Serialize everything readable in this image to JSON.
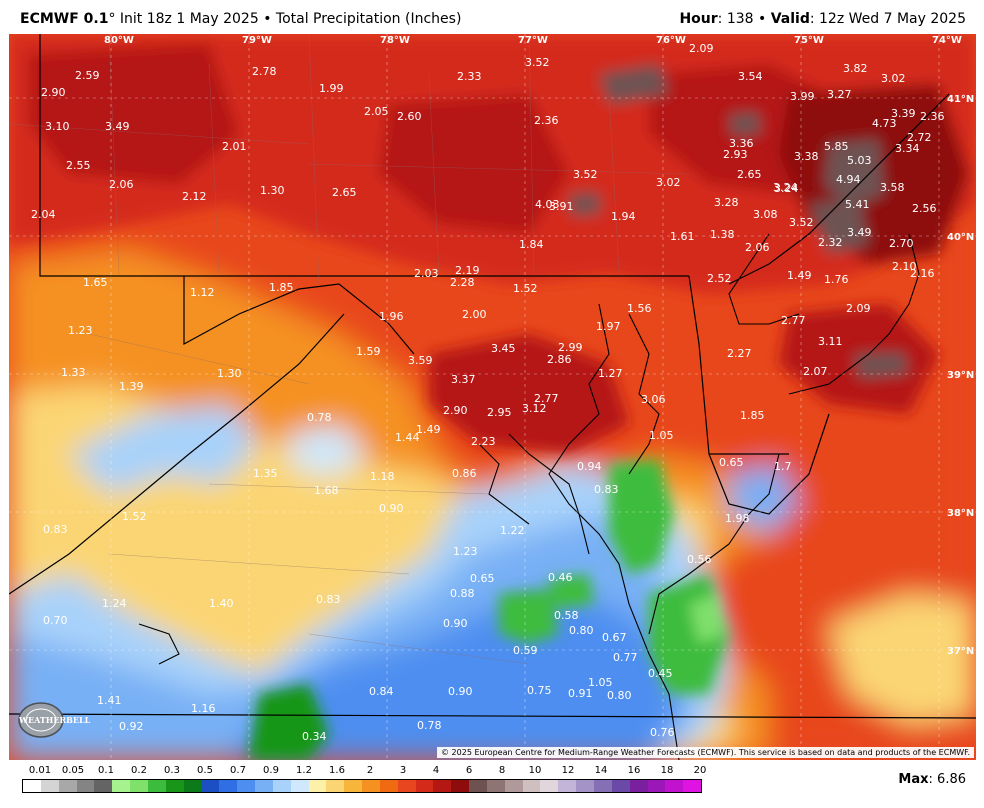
{
  "header": {
    "model": "ECMWF 0.1",
    "degree": "°",
    "init": "Init 18z 1 May 2025",
    "bullet": "•",
    "product": "Total Precipitation (Inches)",
    "hour_label": "Hour",
    "hour_value": ": 138",
    "valid_label": "Valid",
    "valid_value": ": 12z Wed 7 May 2025"
  },
  "map": {
    "longitude_labels": [
      "80°W",
      "79°W",
      "78°W",
      "77°W",
      "76°W",
      "75°W",
      "74°W"
    ],
    "latitude_labels": [
      "41°N",
      "40°N",
      "39°N",
      "38°N",
      "37°N"
    ],
    "values": [
      "2.59",
      "2.90",
      "3.10",
      "3.49",
      "2.78",
      "1.99",
      "2.05",
      "2.60",
      "2.33",
      "3.52",
      "2.09",
      "3.54",
      "3.82",
      "3.02",
      "2.01",
      "2.55",
      "2.06",
      "2.12",
      "1.30",
      "2.65",
      "2.36",
      "3.52",
      "3.02",
      "3.36",
      "2.93",
      "3.38",
      "3.99",
      "3.27",
      "4.73",
      "3.39",
      "2.36",
      "5.85",
      "3.34",
      "2.72",
      "3.24",
      "5.03",
      "4.94",
      "3.58",
      "2.04",
      "4.03",
      "3.91",
      "1.94",
      "1.61",
      "3.28",
      "2.65",
      "3.24",
      "5.41",
      "2.56",
      "1.84",
      "1.38",
      "3.08",
      "3.52",
      "3.49",
      "2.32",
      "2.70",
      "2.06",
      "1.65",
      "1.12",
      "1.85",
      "2.03",
      "2.19",
      "2.28",
      "1.52",
      "2.52",
      "1.49",
      "1.76",
      "2.10",
      "2.16",
      "1.23",
      "1.96",
      "2.00",
      "1.56",
      "2.77",
      "2.09",
      "1.59",
      "3.45",
      "2.99",
      "1.97",
      "2.27",
      "3.11",
      "1.33",
      "1.39",
      "1.30",
      "3.59",
      "3.37",
      "2.86",
      "1.27",
      "2.07",
      "0.78",
      "2.90",
      "2.95",
      "3.12",
      "2.77",
      "3.06",
      "1.85",
      "1.44",
      "1.49",
      "2.23",
      "1.05",
      "0.94",
      "0.65",
      "1.35",
      "1.68",
      "1.18",
      "0.86",
      "0.83",
      "1.7",
      "1.52",
      "0.90",
      "1.22",
      "1.98",
      "0.83",
      "1.23",
      "0.46",
      "0.56",
      "0.65",
      "0.88",
      "1.24",
      "1.40",
      "0.83",
      "0.58",
      "0.70",
      "0.90",
      "0.80",
      "0.67",
      "0.59",
      "0.77",
      "0.45",
      "1.05",
      "0.84",
      "0.90",
      "0.75",
      "0.91",
      "0.80",
      "1.41",
      "1.16",
      "0.92",
      "0.78",
      "0.34",
      "0.76"
    ],
    "copyright": "© 2025 European Centre for Medium-Range Weather Forecasts (ECMWF). This service is based on data and products of the ECMWF.",
    "logo_text": "WEATHERBELL"
  },
  "colorbar": {
    "labels": [
      "0.01",
      "0.05",
      "0.1",
      "0.2",
      "0.3",
      "0.5",
      "0.7",
      "0.9",
      "1.2",
      "1.6",
      "2",
      "3",
      "4",
      "6",
      "8",
      "10",
      "12",
      "14",
      "16",
      "18",
      "20"
    ],
    "colors": [
      "#ffffff",
      "#d4d4d4",
      "#a8a8a8",
      "#848484",
      "#646464",
      "#a6f28f",
      "#7fe06a",
      "#3cbc3d",
      "#199619",
      "#0d7a1a",
      "#1d4fc4",
      "#2f6fe3",
      "#4d8ef0",
      "#78b0f5",
      "#a8d2fa",
      "#cfe8fb",
      "#fdf0a8",
      "#fbd573",
      "#f7b53b",
      "#f59120",
      "#f06a12",
      "#e8461e",
      "#d42a1a",
      "#b51812",
      "#8e0c0c",
      "#6e5252",
      "#8f7474",
      "#b09999",
      "#cfbfbf",
      "#e0d6dc",
      "#c2b5d8",
      "#a493c7",
      "#8670b5",
      "#6a4aa6",
      "#7a1f9e",
      "#9c17b8",
      "#c012cf",
      "#e014e2"
    ],
    "max_label": "Max",
    "max_value": ": 6.86"
  }
}
